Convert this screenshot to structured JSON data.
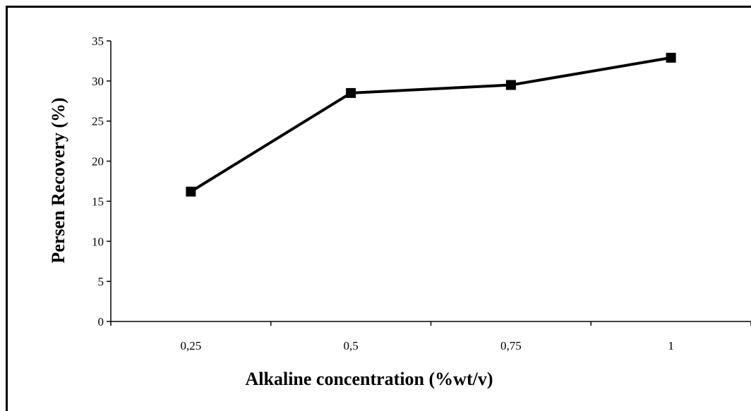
{
  "chart_data": {
    "type": "line",
    "title": "",
    "xlabel": "Alkaline concentration (%wt/v)",
    "ylabel": "Persen Recovery (%)",
    "categories": [
      "0,25",
      "0,5",
      "0,75",
      "1"
    ],
    "series": [
      {
        "values": [
          16.2,
          28.5,
          29.5,
          32.9
        ]
      }
    ],
    "ylim": [
      0,
      35
    ],
    "yticks": [
      0,
      5,
      10,
      15,
      20,
      25,
      30,
      35
    ],
    "grid": false,
    "marker": "square",
    "line_color": "#000000"
  }
}
